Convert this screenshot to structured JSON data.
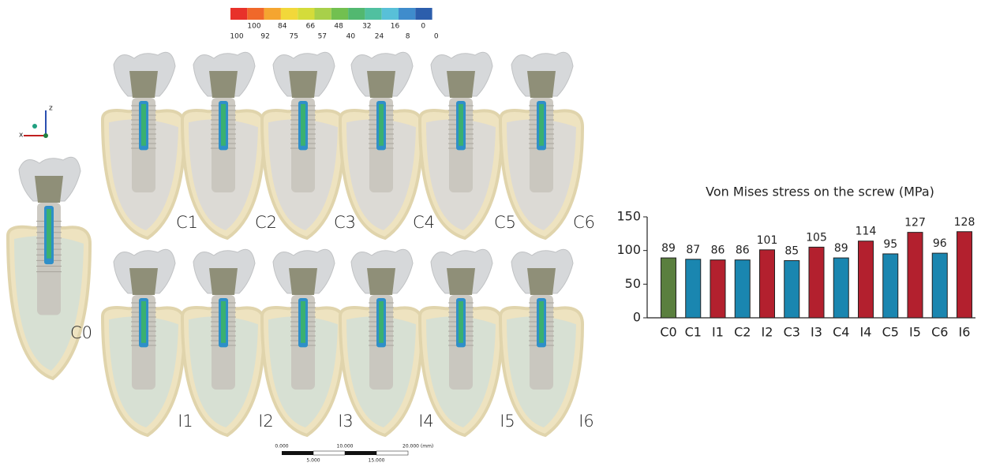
{
  "color_scale": {
    "labels_top": [
      100,
      84,
      66,
      48,
      32,
      16,
      0
    ],
    "labels_bottom": [
      100,
      92,
      75,
      57,
      40,
      24,
      8,
      0
    ]
  },
  "axes_triad": {
    "z": "z",
    "x": "x"
  },
  "panels": {
    "reference": "C0",
    "top_row": [
      "C1",
      "C2",
      "C3",
      "C4",
      "C5",
      "C6"
    ],
    "bottom_row": [
      "I1",
      "I2",
      "I3",
      "I4",
      "I5",
      "I6"
    ]
  },
  "scale_bar": {
    "top_labels": [
      "0.000",
      "10.000",
      "20.000 (mm)"
    ],
    "bottom_labels": [
      "5.000",
      "15.000"
    ]
  },
  "chart_data": {
    "type": "bar",
    "title": "Von Mises stress on the screw (MPa)",
    "categories": [
      "C0",
      "C1",
      "I1",
      "C2",
      "I2",
      "C3",
      "I3",
      "C4",
      "I4",
      "C5",
      "I5",
      "C6",
      "I6"
    ],
    "values": [
      89,
      87,
      86,
      86,
      101,
      85,
      105,
      89,
      114,
      95,
      127,
      96,
      128
    ],
    "colors": [
      "#5a7f3e",
      "#1a86b0",
      "#b3202e",
      "#1a86b0",
      "#b3202e",
      "#1a86b0",
      "#b3202e",
      "#1a86b0",
      "#b3202e",
      "#1a86b0",
      "#b3202e",
      "#1a86b0",
      "#b3202e"
    ],
    "ylim": [
      0,
      150
    ],
    "yticks": [
      0,
      50,
      100,
      150
    ],
    "grid": false
  }
}
